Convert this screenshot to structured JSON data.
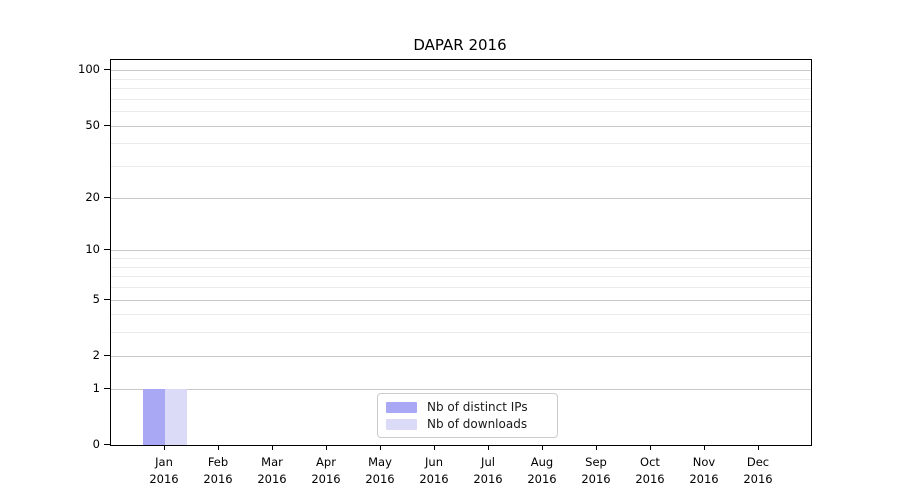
{
  "chart_data": {
    "type": "bar",
    "title": "DAPAR 2016",
    "xlabel": "",
    "ylabel": "",
    "yscale": "log1p",
    "ylim": [
      0,
      115
    ],
    "yticks": [
      0,
      1,
      2,
      5,
      10,
      20,
      50,
      100
    ],
    "minor_gridticks": [
      3,
      4,
      6,
      7,
      8,
      9,
      30,
      40,
      60,
      70,
      80,
      90
    ],
    "grid": true,
    "legend_position": "bottom-center",
    "categories": [
      {
        "month": "Jan",
        "year": "2016"
      },
      {
        "month": "Feb",
        "year": "2016"
      },
      {
        "month": "Mar",
        "year": "2016"
      },
      {
        "month": "Apr",
        "year": "2016"
      },
      {
        "month": "May",
        "year": "2016"
      },
      {
        "month": "Jun",
        "year": "2016"
      },
      {
        "month": "Jul",
        "year": "2016"
      },
      {
        "month": "Aug",
        "year": "2016"
      },
      {
        "month": "Sep",
        "year": "2016"
      },
      {
        "month": "Oct",
        "year": "2016"
      },
      {
        "month": "Nov",
        "year": "2016"
      },
      {
        "month": "Dec",
        "year": "2016"
      }
    ],
    "series": [
      {
        "name": "Nb of distinct IPs",
        "color": "#a8a8f4",
        "values": [
          1,
          0,
          0,
          0,
          0,
          0,
          0,
          0,
          0,
          0,
          0,
          0
        ]
      },
      {
        "name": "Nb of downloads",
        "color": "#dbdbf8",
        "values": [
          1,
          0,
          0,
          0,
          0,
          0,
          0,
          0,
          0,
          0,
          0,
          0
        ]
      }
    ]
  },
  "colors": {
    "background": "#ffffff",
    "axis": "#000000",
    "text": "#000000",
    "grid_major": "#c8c8c8",
    "grid_minor": "#ebebeb",
    "legend_border": "#cccccc"
  }
}
